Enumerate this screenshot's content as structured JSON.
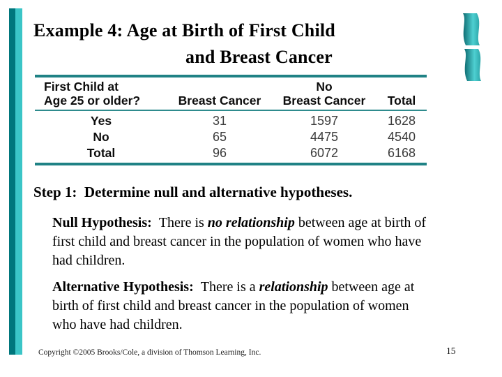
{
  "slide": {
    "title_line1": "Example 4: Age at Birth of First Child",
    "title_line2": "and Breast Cancer",
    "step_heading": "Step 1:  Determine null and alternative hypotheses.",
    "footer": {
      "copyright": "Copyright ©2005 Brooks/Cole, a division of Thomson Learning, Inc.",
      "page_number": "15"
    }
  },
  "table": {
    "header": {
      "col1_line1": "First Child at",
      "col1_line2": "Age 25 or older?",
      "col2": "Breast Cancer",
      "col3_line1": "No",
      "col3_line2": "Breast Cancer",
      "col4": "Total"
    },
    "rows": [
      {
        "label": "Yes",
        "breast_cancer": "31",
        "no_breast_cancer": "1597",
        "total": "1628"
      },
      {
        "label": "No",
        "breast_cancer": "65",
        "no_breast_cancer": "4475",
        "total": "4540"
      },
      {
        "label": "Total",
        "breast_cancer": "96",
        "no_breast_cancer": "6072",
        "total": "6168"
      }
    ]
  },
  "paragraphs": {
    "null_hypothesis": {
      "segments": [
        {
          "text": "Null Hypothesis:  ",
          "style": "bold"
        },
        {
          "text": "There is ",
          "style": "normal"
        },
        {
          "text": "no relationship",
          "style": "bold-italic"
        },
        {
          "text": " between age at birth of first child and breast cancer in the population of women who have had children.",
          "style": "normal"
        }
      ]
    },
    "alternative_hypothesis": {
      "segments": [
        {
          "text": "Alternative Hypothesis:  ",
          "style": "bold"
        },
        {
          "text": "There is a ",
          "style": "normal"
        },
        {
          "text": "relationship",
          "style": "bold-italic"
        },
        {
          "text": " between age at birth of first child and breast cancer in the population of women who have had children.",
          "style": "normal"
        }
      ]
    }
  },
  "colors": {
    "accent_teal_dark": "#00767c",
    "accent_teal_light": "#3bc5c7",
    "table_rule_teal": "#1f8285",
    "number_gray": "#3c3c3c",
    "text_black": "#000000"
  }
}
